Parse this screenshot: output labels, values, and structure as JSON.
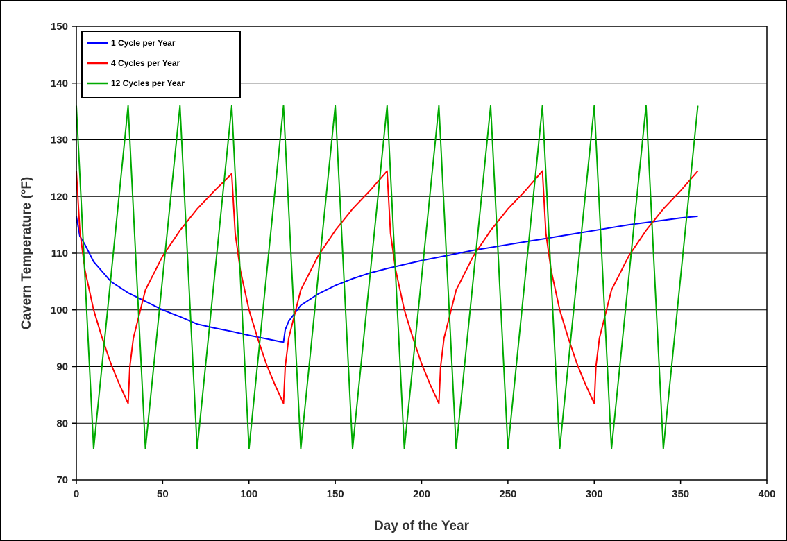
{
  "chart_data": {
    "type": "line",
    "title": "",
    "xlabel": "Day of the Year",
    "ylabel": "Cavern Temperature (°F)",
    "xlim": [
      0,
      400
    ],
    "ylim": [
      70,
      150
    ],
    "x_ticks": [
      0,
      50,
      100,
      150,
      200,
      250,
      300,
      350,
      400
    ],
    "y_ticks": [
      70,
      80,
      90,
      100,
      110,
      120,
      130,
      140,
      150
    ],
    "grid": "horizontal",
    "legend_position": "top-left",
    "series": [
      {
        "name": "1 Cycle per Year",
        "color": "#0000ff",
        "points": [
          [
            0,
            116.5
          ],
          [
            2,
            113
          ],
          [
            5,
            111.5
          ],
          [
            10,
            108.5
          ],
          [
            20,
            105
          ],
          [
            30,
            103
          ],
          [
            40,
            101.5
          ],
          [
            50,
            100
          ],
          [
            60,
            98.8
          ],
          [
            70,
            97.5
          ],
          [
            80,
            96.8
          ],
          [
            90,
            96.2
          ],
          [
            100,
            95.5
          ],
          [
            110,
            94.9
          ],
          [
            118,
            94.4
          ],
          [
            120,
            94.3
          ],
          [
            121,
            96.5
          ],
          [
            123,
            98
          ],
          [
            130,
            100.8
          ],
          [
            140,
            102.8
          ],
          [
            150,
            104.3
          ],
          [
            160,
            105.5
          ],
          [
            170,
            106.5
          ],
          [
            180,
            107.3
          ],
          [
            190,
            108
          ],
          [
            200,
            108.7
          ],
          [
            210,
            109.3
          ],
          [
            220,
            109.9
          ],
          [
            230,
            110.5
          ],
          [
            240,
            111
          ],
          [
            250,
            111.5
          ],
          [
            260,
            112
          ],
          [
            270,
            112.5
          ],
          [
            280,
            113
          ],
          [
            290,
            113.5
          ],
          [
            300,
            114
          ],
          [
            310,
            114.5
          ],
          [
            320,
            115
          ],
          [
            330,
            115.4
          ],
          [
            340,
            115.8
          ],
          [
            350,
            116.2
          ],
          [
            360,
            116.5
          ]
        ]
      },
      {
        "name": "4 Cycles per Year",
        "color": "#ff0000",
        "points": [
          [
            0,
            124.5
          ],
          [
            2,
            114
          ],
          [
            5,
            107
          ],
          [
            10,
            100
          ],
          [
            15,
            95
          ],
          [
            20,
            90.5
          ],
          [
            25,
            86.8
          ],
          [
            30,
            83.5
          ],
          [
            31,
            90
          ],
          [
            33,
            95
          ],
          [
            40,
            103.5
          ],
          [
            50,
            109.5
          ],
          [
            60,
            114
          ],
          [
            70,
            117.8
          ],
          [
            80,
            121
          ],
          [
            90,
            124
          ],
          [
            92,
            113.5
          ],
          [
            95,
            107
          ],
          [
            100,
            100
          ],
          [
            105,
            95
          ],
          [
            110,
            90.5
          ],
          [
            115,
            86.8
          ],
          [
            120,
            83.5
          ],
          [
            121,
            90
          ],
          [
            123,
            95
          ],
          [
            130,
            103.5
          ],
          [
            140,
            109.5
          ],
          [
            150,
            114
          ],
          [
            160,
            117.8
          ],
          [
            170,
            121
          ],
          [
            180,
            124.5
          ],
          [
            182,
            113.5
          ],
          [
            185,
            107
          ],
          [
            190,
            100
          ],
          [
            195,
            95
          ],
          [
            200,
            90.5
          ],
          [
            205,
            86.8
          ],
          [
            210,
            83.5
          ],
          [
            211,
            90
          ],
          [
            213,
            95
          ],
          [
            220,
            103.5
          ],
          [
            230,
            109.5
          ],
          [
            240,
            114
          ],
          [
            250,
            117.8
          ],
          [
            260,
            121
          ],
          [
            270,
            124.5
          ],
          [
            272,
            113.5
          ],
          [
            275,
            107
          ],
          [
            280,
            100
          ],
          [
            285,
            95
          ],
          [
            290,
            90.5
          ],
          [
            295,
            86.8
          ],
          [
            300,
            83.5
          ],
          [
            301,
            90
          ],
          [
            303,
            95
          ],
          [
            310,
            103.5
          ],
          [
            320,
            109.5
          ],
          [
            330,
            114
          ],
          [
            340,
            117.8
          ],
          [
            350,
            121
          ],
          [
            360,
            124.5
          ]
        ]
      },
      {
        "name": "12 Cycles per Year",
        "color": "#00aa00",
        "points": [
          [
            0,
            136
          ],
          [
            10,
            75.5
          ],
          [
            30,
            136
          ],
          [
            40,
            75.5
          ],
          [
            60,
            136
          ],
          [
            70,
            75.5
          ],
          [
            90,
            136
          ],
          [
            100,
            75.5
          ],
          [
            120,
            136
          ],
          [
            130,
            75.5
          ],
          [
            150,
            136
          ],
          [
            160,
            75.5
          ],
          [
            180,
            136
          ],
          [
            190,
            75.5
          ],
          [
            210,
            136
          ],
          [
            220,
            75.5
          ],
          [
            240,
            136
          ],
          [
            250,
            75.5
          ],
          [
            270,
            136
          ],
          [
            280,
            75.5
          ],
          [
            300,
            136
          ],
          [
            310,
            75.5
          ],
          [
            330,
            136
          ],
          [
            340,
            75.5
          ],
          [
            360,
            136
          ]
        ]
      }
    ]
  }
}
